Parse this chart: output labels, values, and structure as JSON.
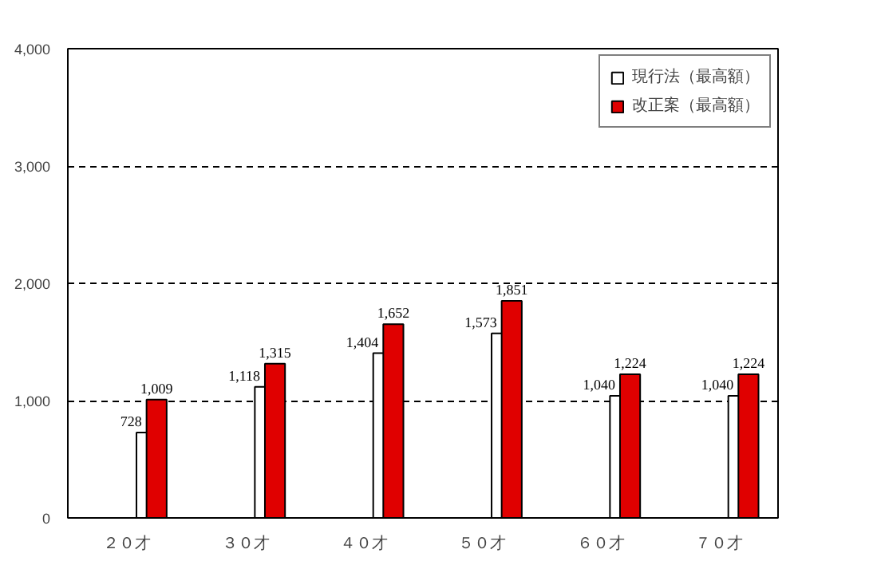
{
  "chart_data": {
    "type": "bar",
    "categories": [
      "２０才",
      "３０才",
      "４０才",
      "５０才",
      "６０才",
      "７０才"
    ],
    "series": [
      {
        "name": "現行法（最高額）",
        "color": "#ffffff",
        "values": [
          728,
          1118,
          1404,
          1573,
          1040,
          1040
        ],
        "value_labels": [
          "728",
          "1,118",
          "1,404",
          "1,573",
          "1,040",
          "1,040"
        ]
      },
      {
        "name": "改正案（最高額）",
        "color": "#e00000",
        "values": [
          1009,
          1315,
          1652,
          1851,
          1224,
          1224
        ],
        "value_labels": [
          "1,009",
          "1,315",
          "1,652",
          "1,851",
          "1,224",
          "1,224"
        ]
      }
    ],
    "ylim": [
      0,
      4000
    ],
    "yticks": [
      0,
      {
        "value": 1000,
        "label": "1,000"
      },
      {
        "value": 2000,
        "label": "2,000"
      },
      {
        "value": 3000,
        "label": "3,000"
      },
      {
        "value": 4000,
        "label": "4,000"
      }
    ],
    "grid": "y",
    "legend": "top right",
    "data_labels": true
  }
}
